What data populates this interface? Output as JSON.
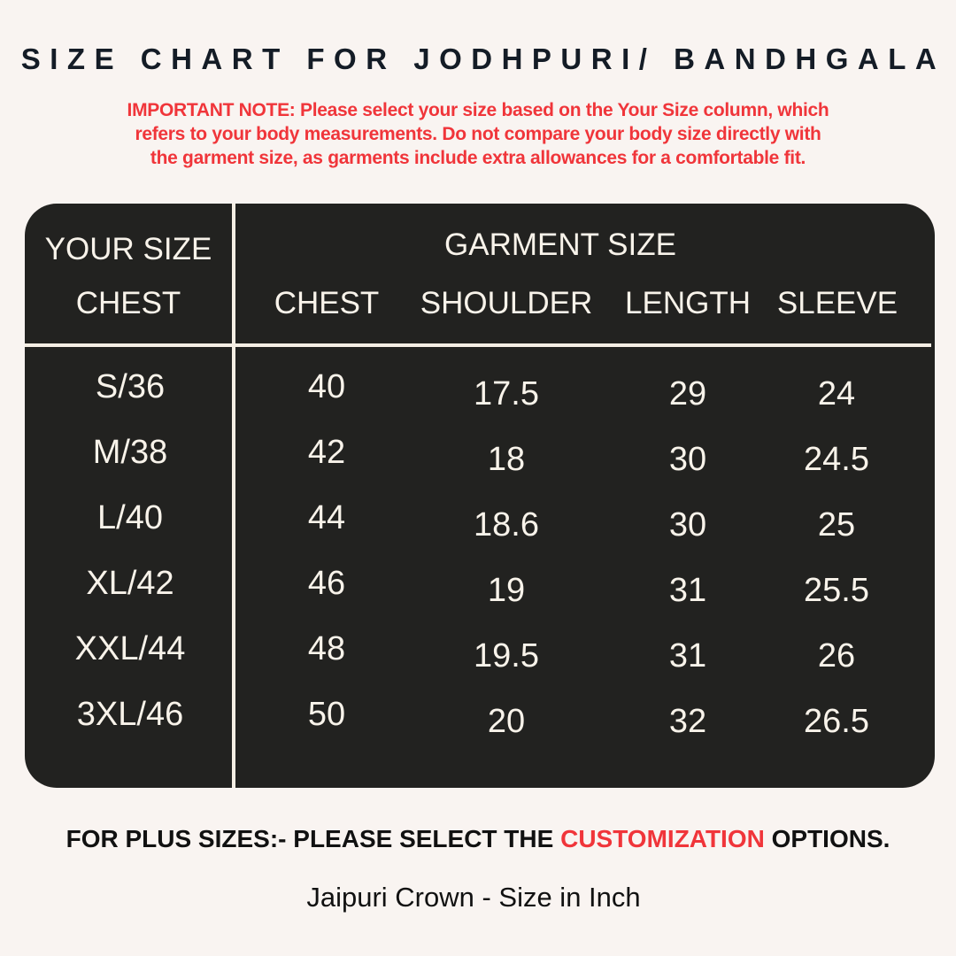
{
  "title": "SIZE CHART FOR JODHPURI/ BANDHGALA",
  "note": "IMPORTANT NOTE: Please select your size based on the Your Size column, which refers to your body measurements. Do not compare your body size directly with the garment size, as garments include extra allowances for a comfortable fit.",
  "table": {
    "your_size_label": "YOUR SIZE",
    "your_size_sub": "CHEST",
    "garment_size_label": "GARMENT SIZE",
    "columns": [
      "CHEST",
      "SHOULDER",
      "LENGTH",
      "SLEEVE"
    ],
    "rows": [
      {
        "size": "S/36",
        "chest": "40",
        "shoulder": "17.5",
        "length": "29",
        "sleeve": "24"
      },
      {
        "size": "M/38",
        "chest": "42",
        "shoulder": "18",
        "length": "30",
        "sleeve": "24.5"
      },
      {
        "size": "L/40",
        "chest": "44",
        "shoulder": "18.6",
        "length": "30",
        "sleeve": "25"
      },
      {
        "size": "XL/42",
        "chest": "46",
        "shoulder": "19",
        "length": "31",
        "sleeve": "25.5"
      },
      {
        "size": "XXL/44",
        "chest": "48",
        "shoulder": "19.5",
        "length": "31",
        "sleeve": "26"
      },
      {
        "size": "3XL/46",
        "chest": "50",
        "shoulder": "20",
        "length": "32",
        "sleeve": "26.5"
      }
    ]
  },
  "plus_sizes": {
    "before": "FOR PLUS SIZES:- PLEASE SELECT THE ",
    "highlight": "CUSTOMIZATION",
    "after": " OPTIONS."
  },
  "footer": "Jaipuri Crown - Size in Inch",
  "colors": {
    "background": "#f9f4f1",
    "table": "#222220",
    "accent_red": "#f0353a",
    "title": "#141c26"
  }
}
